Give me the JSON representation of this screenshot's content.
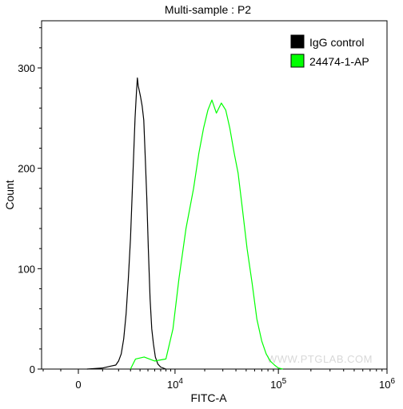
{
  "chart_data": {
    "type": "line",
    "title": "Multi-sample : P2",
    "xlabel": "FITC-A",
    "ylabel": "Count",
    "x_scale": "biexponential",
    "x_ticks": [
      {
        "value": 0,
        "base": "0",
        "exp": ""
      },
      {
        "value": 10000,
        "base": "10",
        "exp": "4"
      },
      {
        "value": 100000,
        "base": "10",
        "exp": "5"
      },
      {
        "value": 1000000,
        "base": "10",
        "exp": "6"
      }
    ],
    "ylim": [
      0,
      350
    ],
    "y_ticks": [
      0,
      100,
      200,
      300
    ],
    "legend_position": "top-right",
    "grid": false,
    "watermark": "WWW.PTGLAB.COM",
    "series": [
      {
        "name": "IgG control",
        "color": "#000000",
        "points": [
          [
            300,
            0
          ],
          [
            1000,
            1
          ],
          [
            1500,
            3
          ],
          [
            1800,
            4
          ],
          [
            2000,
            8
          ],
          [
            2200,
            15
          ],
          [
            2400,
            30
          ],
          [
            2600,
            55
          ],
          [
            2800,
            90
          ],
          [
            3000,
            130
          ],
          [
            3150,
            170
          ],
          [
            3300,
            210
          ],
          [
            3450,
            250
          ],
          [
            3600,
            275
          ],
          [
            3700,
            290
          ],
          [
            3800,
            282
          ],
          [
            3900,
            278
          ],
          [
            4050,
            272
          ],
          [
            4250,
            262
          ],
          [
            4450,
            248
          ],
          [
            4650,
            210
          ],
          [
            4850,
            170
          ],
          [
            5050,
            120
          ],
          [
            5300,
            70
          ],
          [
            5550,
            40
          ],
          [
            5800,
            25
          ],
          [
            6100,
            12
          ],
          [
            6500,
            5
          ],
          [
            7000,
            2
          ],
          [
            8000,
            0
          ]
        ]
      },
      {
        "name": "24474-1-AP",
        "color": "#00ff00",
        "points": [
          [
            3000,
            0
          ],
          [
            3500,
            10
          ],
          [
            4500,
            12
          ],
          [
            6000,
            8
          ],
          [
            8000,
            10
          ],
          [
            9500,
            40
          ],
          [
            11000,
            90
          ],
          [
            13000,
            140
          ],
          [
            15500,
            180
          ],
          [
            17500,
            215
          ],
          [
            19500,
            240
          ],
          [
            21500,
            258
          ],
          [
            23500,
            268
          ],
          [
            26000,
            255
          ],
          [
            29000,
            265
          ],
          [
            32000,
            258
          ],
          [
            35000,
            240
          ],
          [
            38500,
            215
          ],
          [
            42000,
            195
          ],
          [
            46000,
            160
          ],
          [
            51000,
            120
          ],
          [
            57000,
            85
          ],
          [
            63000,
            50
          ],
          [
            70000,
            28
          ],
          [
            77000,
            15
          ],
          [
            84000,
            8
          ],
          [
            92000,
            4
          ],
          [
            100000,
            1
          ],
          [
            110000,
            0
          ]
        ]
      }
    ]
  }
}
